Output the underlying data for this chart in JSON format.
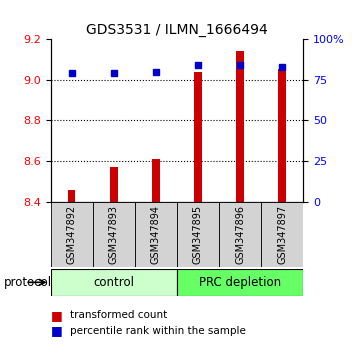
{
  "title": "GDS3531 / ILMN_1666494",
  "samples": [
    "GSM347892",
    "GSM347893",
    "GSM347894",
    "GSM347895",
    "GSM347896",
    "GSM347897"
  ],
  "transformed_count": [
    8.46,
    8.57,
    8.61,
    9.04,
    9.14,
    9.05
  ],
  "percentile_rank": [
    79,
    79,
    80,
    84,
    84,
    83
  ],
  "ylim_left": [
    8.4,
    9.2
  ],
  "ylim_right": [
    0,
    100
  ],
  "yticks_left": [
    8.4,
    8.6,
    8.8,
    9.0,
    9.2
  ],
  "yticks_right": [
    0,
    25,
    50,
    75,
    100
  ],
  "bar_color": "#cc0000",
  "dot_color": "#0000cc",
  "bar_width": 0.18,
  "groups": [
    {
      "label": "control",
      "samples": [
        0,
        1,
        2
      ],
      "color": "#ccffcc"
    },
    {
      "label": "PRC depletion",
      "samples": [
        3,
        4,
        5
      ],
      "color": "#66ff66"
    }
  ],
  "protocol_label": "protocol",
  "legend_bar_label": "transformed count",
  "legend_dot_label": "percentile rank within the sample",
  "background_color": "#ffffff",
  "tick_area_color": "#d3d3d3"
}
